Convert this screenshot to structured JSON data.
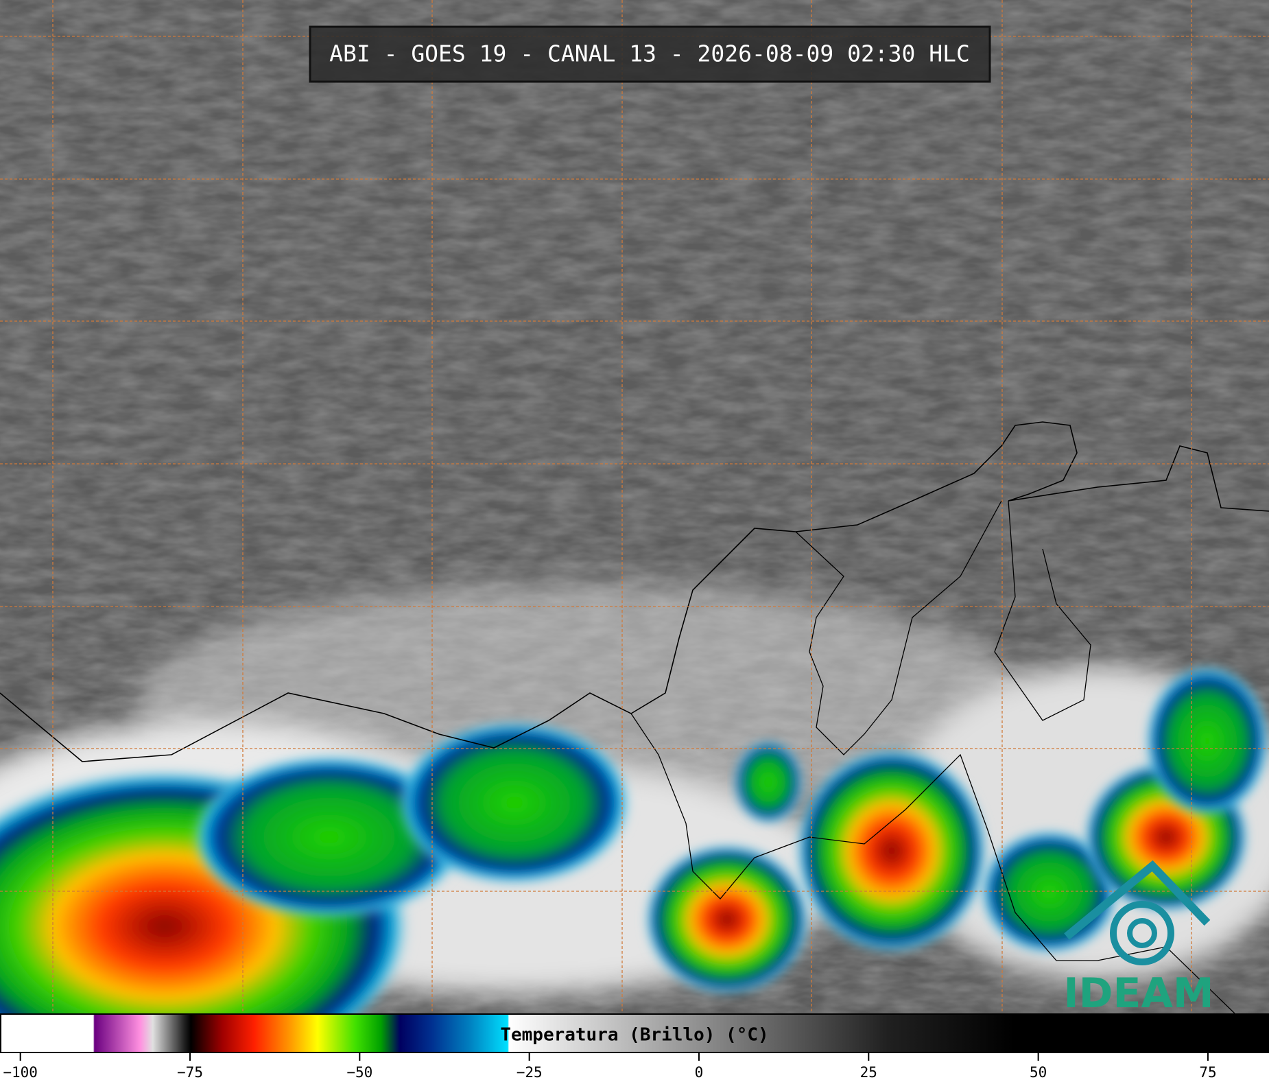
{
  "title": "ABI - GOES 19 - CANAL 13 - 2026-08-09 02:30 HLC",
  "colorbar": {
    "label": "Temperatura (Brillo) (°C)",
    "lim": [
      -103,
      84
    ],
    "ticks": [
      {
        "value": -100,
        "label": "−100"
      },
      {
        "value": -75,
        "label": "−75"
      },
      {
        "value": -50,
        "label": "−50"
      },
      {
        "value": -25,
        "label": "−25"
      },
      0,
      25,
      50,
      75
    ]
  },
  "logo": "IDEAM"
}
